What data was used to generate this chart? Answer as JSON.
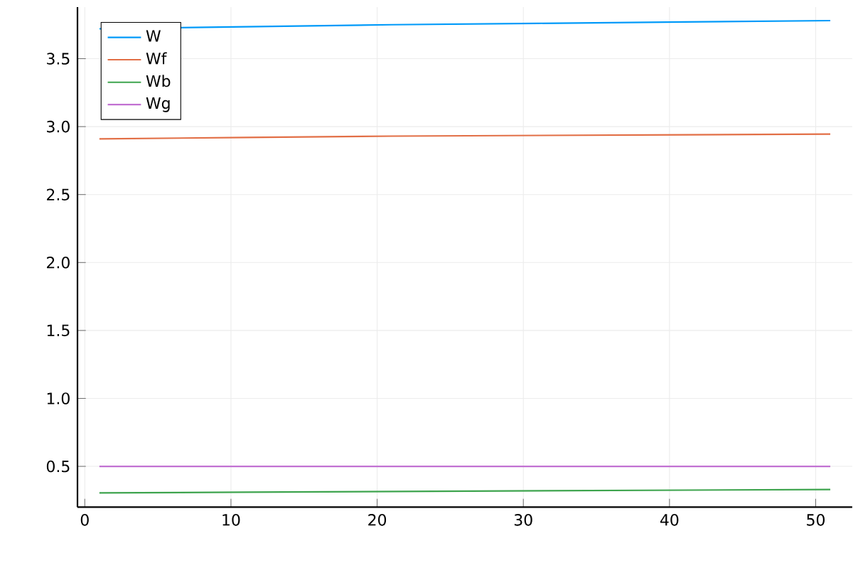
{
  "chart_data": {
    "type": "line",
    "x": [
      1,
      11,
      21,
      31,
      41,
      51
    ],
    "series": [
      {
        "name": "W",
        "color": "#009af9",
        "values": [
          3.72,
          3.735,
          3.75,
          3.76,
          3.77,
          3.78
        ]
      },
      {
        "name": "Wf",
        "color": "#e26f46",
        "values": [
          2.91,
          2.92,
          2.93,
          2.935,
          2.94,
          2.945
        ]
      },
      {
        "name": "Wb",
        "color": "#3ea44e",
        "values": [
          0.305,
          0.31,
          0.315,
          0.32,
          0.325,
          0.33
        ]
      },
      {
        "name": "Wg",
        "color": "#c271d2",
        "values": [
          0.5,
          0.5,
          0.5,
          0.5,
          0.5,
          0.5
        ]
      }
    ],
    "xlim": [
      -0.5,
      52.5
    ],
    "ylim": [
      0.2,
      3.88
    ],
    "xticks": [
      0,
      10,
      20,
      30,
      40,
      50
    ],
    "yticks": [
      0.5,
      {
        "value": 1,
        "label": "1.0"
      },
      1.5,
      {
        "value": 2,
        "label": "2.0"
      },
      2.5,
      {
        "value": 3,
        "label": "3.0"
      },
      3.5
    ],
    "grid": true,
    "legend": "top left",
    "marker": "none",
    "line_style": "solid"
  }
}
